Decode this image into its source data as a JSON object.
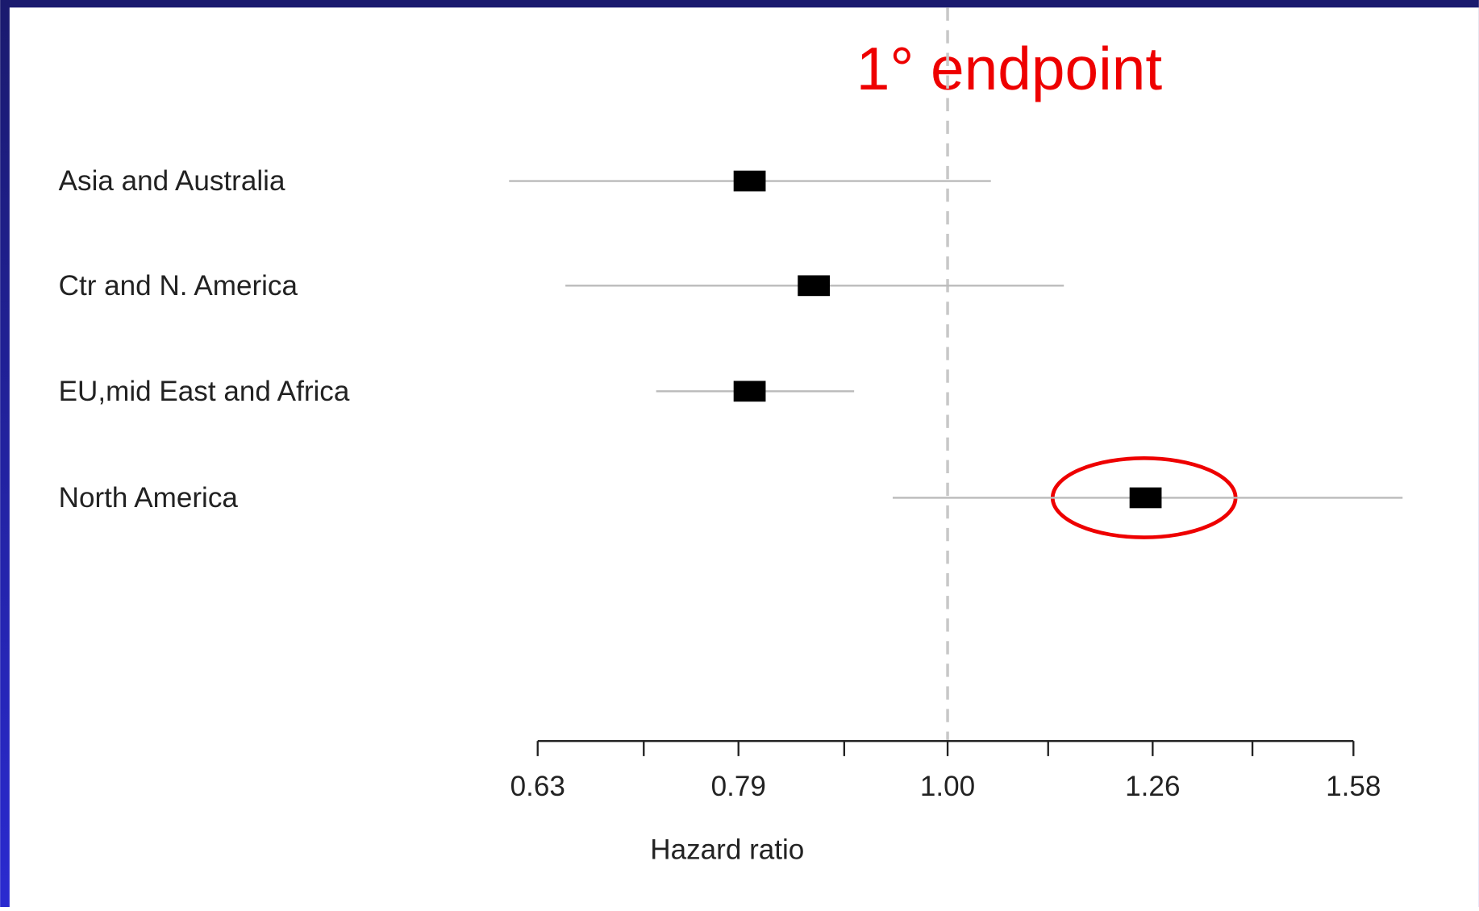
{
  "chart_data": {
    "type": "forest",
    "annotation": "1° endpoint",
    "categories": [
      "Asia and Australia",
      "Ctr and N. America",
      "EU,mid East and Africa",
      "North America"
    ],
    "values": [
      0.8,
      0.86,
      0.8,
      1.25
    ],
    "lower": [
      0.61,
      0.65,
      0.72,
      0.94
    ],
    "upper": [
      1.05,
      1.14,
      0.9,
      1.67
    ],
    "color": "#000000",
    "ci_color": "#bbbbbb",
    "x_label": "Hazard ratio",
    "xscale": "log",
    "xlim": [
      0.63,
      1.58
    ],
    "xticks": [
      0.63,
      0.79,
      {
        "value": 1,
        "label": "1.00"
      },
      1.26,
      1.58
    ],
    "minor_xticks": [
      0.71,
      0.89,
      1.12,
      1.41
    ],
    "ref_line": 1
  }
}
